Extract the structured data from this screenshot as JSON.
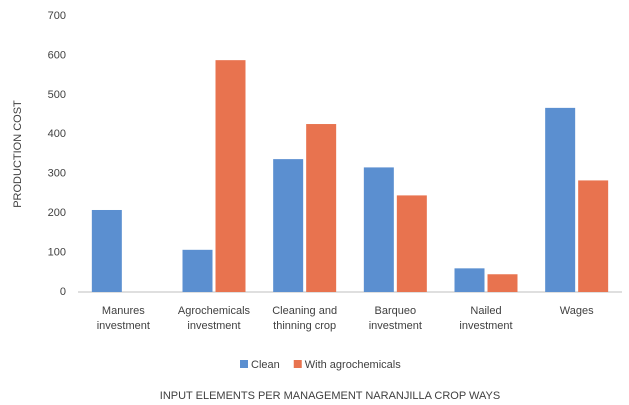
{
  "chart_data": {
    "type": "bar",
    "categories": [
      [
        "Manures",
        "investment"
      ],
      [
        "Agrochemicals",
        "investment"
      ],
      [
        "Cleaning and",
        "thinning crop"
      ],
      [
        "Barqueo",
        "investment"
      ],
      [
        "Nailed",
        "investment"
      ],
      [
        "Wages"
      ]
    ],
    "series": [
      {
        "name": "Clean",
        "color": "#5b8fd0",
        "values": [
          208,
          107,
          337,
          316,
          60,
          467
        ]
      },
      {
        "name": "With agrochemicals",
        "color": "#e8734f",
        "values": [
          null,
          588,
          426,
          245,
          45,
          283
        ]
      }
    ],
    "ylim": [
      0,
      700
    ],
    "yticks": [
      0,
      100,
      200,
      300,
      400,
      500,
      600,
      700
    ],
    "y_label": "PRODUCTION COST",
    "x_label": "INPUT ELEMENTS PER MANAGEMENT NARANJILLA CROP WAYS",
    "grid": false
  }
}
